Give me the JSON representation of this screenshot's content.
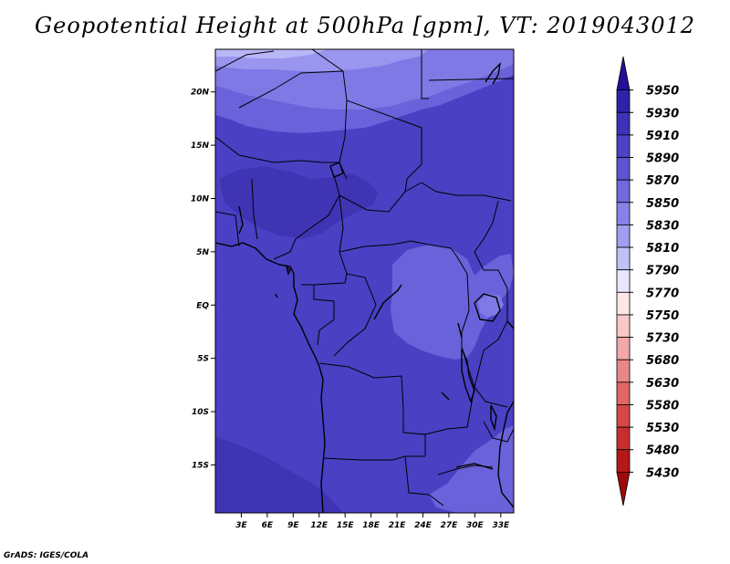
{
  "title": "Geopotential Height at 500hPa [gpm], VT: 2019043012",
  "credit": "GrADS: IGES/COLA",
  "map": {
    "lat_range": [
      -19.5,
      24
    ],
    "lon_range": [
      0,
      34.5
    ],
    "lat_ticks": [
      {
        "value": 20,
        "label": "20N"
      },
      {
        "value": 15,
        "label": "15N"
      },
      {
        "value": 10,
        "label": "10N"
      },
      {
        "value": 5,
        "label": "5N"
      },
      {
        "value": 0,
        "label": "EQ"
      },
      {
        "value": -5,
        "label": "5S"
      },
      {
        "value": -10,
        "label": "10S"
      },
      {
        "value": -15,
        "label": "15S"
      }
    ],
    "lon_ticks": [
      {
        "value": 3,
        "label": "3E"
      },
      {
        "value": 6,
        "label": "6E"
      },
      {
        "value": 9,
        "label": "9E"
      },
      {
        "value": 12,
        "label": "12E"
      },
      {
        "value": 15,
        "label": "15E"
      },
      {
        "value": 18,
        "label": "18E"
      },
      {
        "value": 21,
        "label": "21E"
      },
      {
        "value": 24,
        "label": "24E"
      },
      {
        "value": 27,
        "label": "27E"
      },
      {
        "value": 30,
        "label": "30E"
      },
      {
        "value": 33,
        "label": "33E"
      }
    ],
    "fill_colors": {
      "base": "#4a40c4",
      "low_5870": "#6a62da",
      "mid_5850": "#7f79e6",
      "high_5910": "#3f34b3",
      "top_5830": "#9a96ef",
      "top_5810": "#b8b6f6"
    }
  },
  "colorbar": {
    "levels": [
      "5950",
      "5930",
      "5910",
      "5890",
      "5870",
      "5850",
      "5830",
      "5810",
      "5790",
      "5770",
      "5750",
      "5730",
      "5680",
      "5630",
      "5580",
      "5530",
      "5480",
      "5430"
    ],
    "colors": [
      "#23119a",
      "#2f22a8",
      "#3b33b7",
      "#4a43c5",
      "#5b55d2",
      "#6f6ade",
      "#8682e8",
      "#a09ef0",
      "#c2c1f7",
      "#e6e6fc",
      "#fde6e6",
      "#f8c8c8",
      "#f1a8a8",
      "#e98787",
      "#e06767",
      "#d64848",
      "#c92e2e",
      "#b51818",
      "#9e0a0a"
    ]
  }
}
